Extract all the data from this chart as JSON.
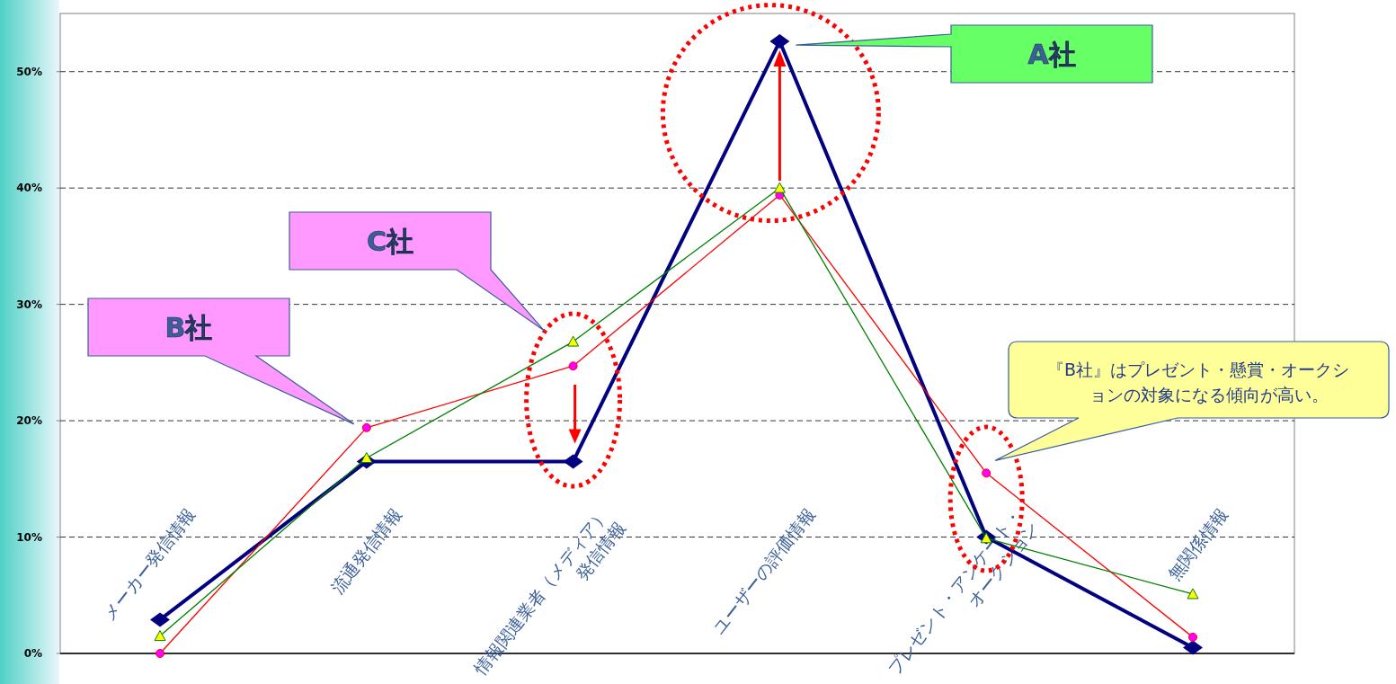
{
  "chart_data": {
    "type": "line",
    "categories": [
      "メーカー発信情報",
      "流通発信情報",
      "情報関連業者（メディア）\n発信情報",
      "ユーザーの評価情報",
      "プレゼント・アンケート・\nオークション",
      "無関係情報"
    ],
    "series": [
      {
        "color": "#000080",
        "marker": "diamond",
        "values": [
          2.9,
          16.5,
          16.5,
          52.6,
          10.0,
          0.5
        ]
      },
      {
        "color": "#ff0000",
        "marker": "circle",
        "values": [
          0.0,
          19.4,
          24.7,
          39.4,
          15.5,
          1.4
        ]
      },
      {
        "color": "#008000",
        "marker": "triangle",
        "values": [
          1.5,
          16.8,
          26.8,
          40.0,
          9.9,
          5.1
        ]
      }
    ],
    "ylim": [
      0,
      55
    ],
    "yticks": [
      {
        "value": 0,
        "label": "0%"
      },
      {
        "value": 10,
        "label": "10%"
      },
      {
        "value": 20,
        "label": "20%"
      },
      {
        "value": 30,
        "label": "30%"
      },
      {
        "value": 40,
        "label": "40%"
      },
      {
        "value": 50,
        "label": "50%"
      }
    ],
    "grid": "y",
    "annotations": [
      "A社",
      "B社",
      "C社",
      "『B社』はプレゼント・懸賞・オークションの対象になる傾向が高い。"
    ]
  }
}
